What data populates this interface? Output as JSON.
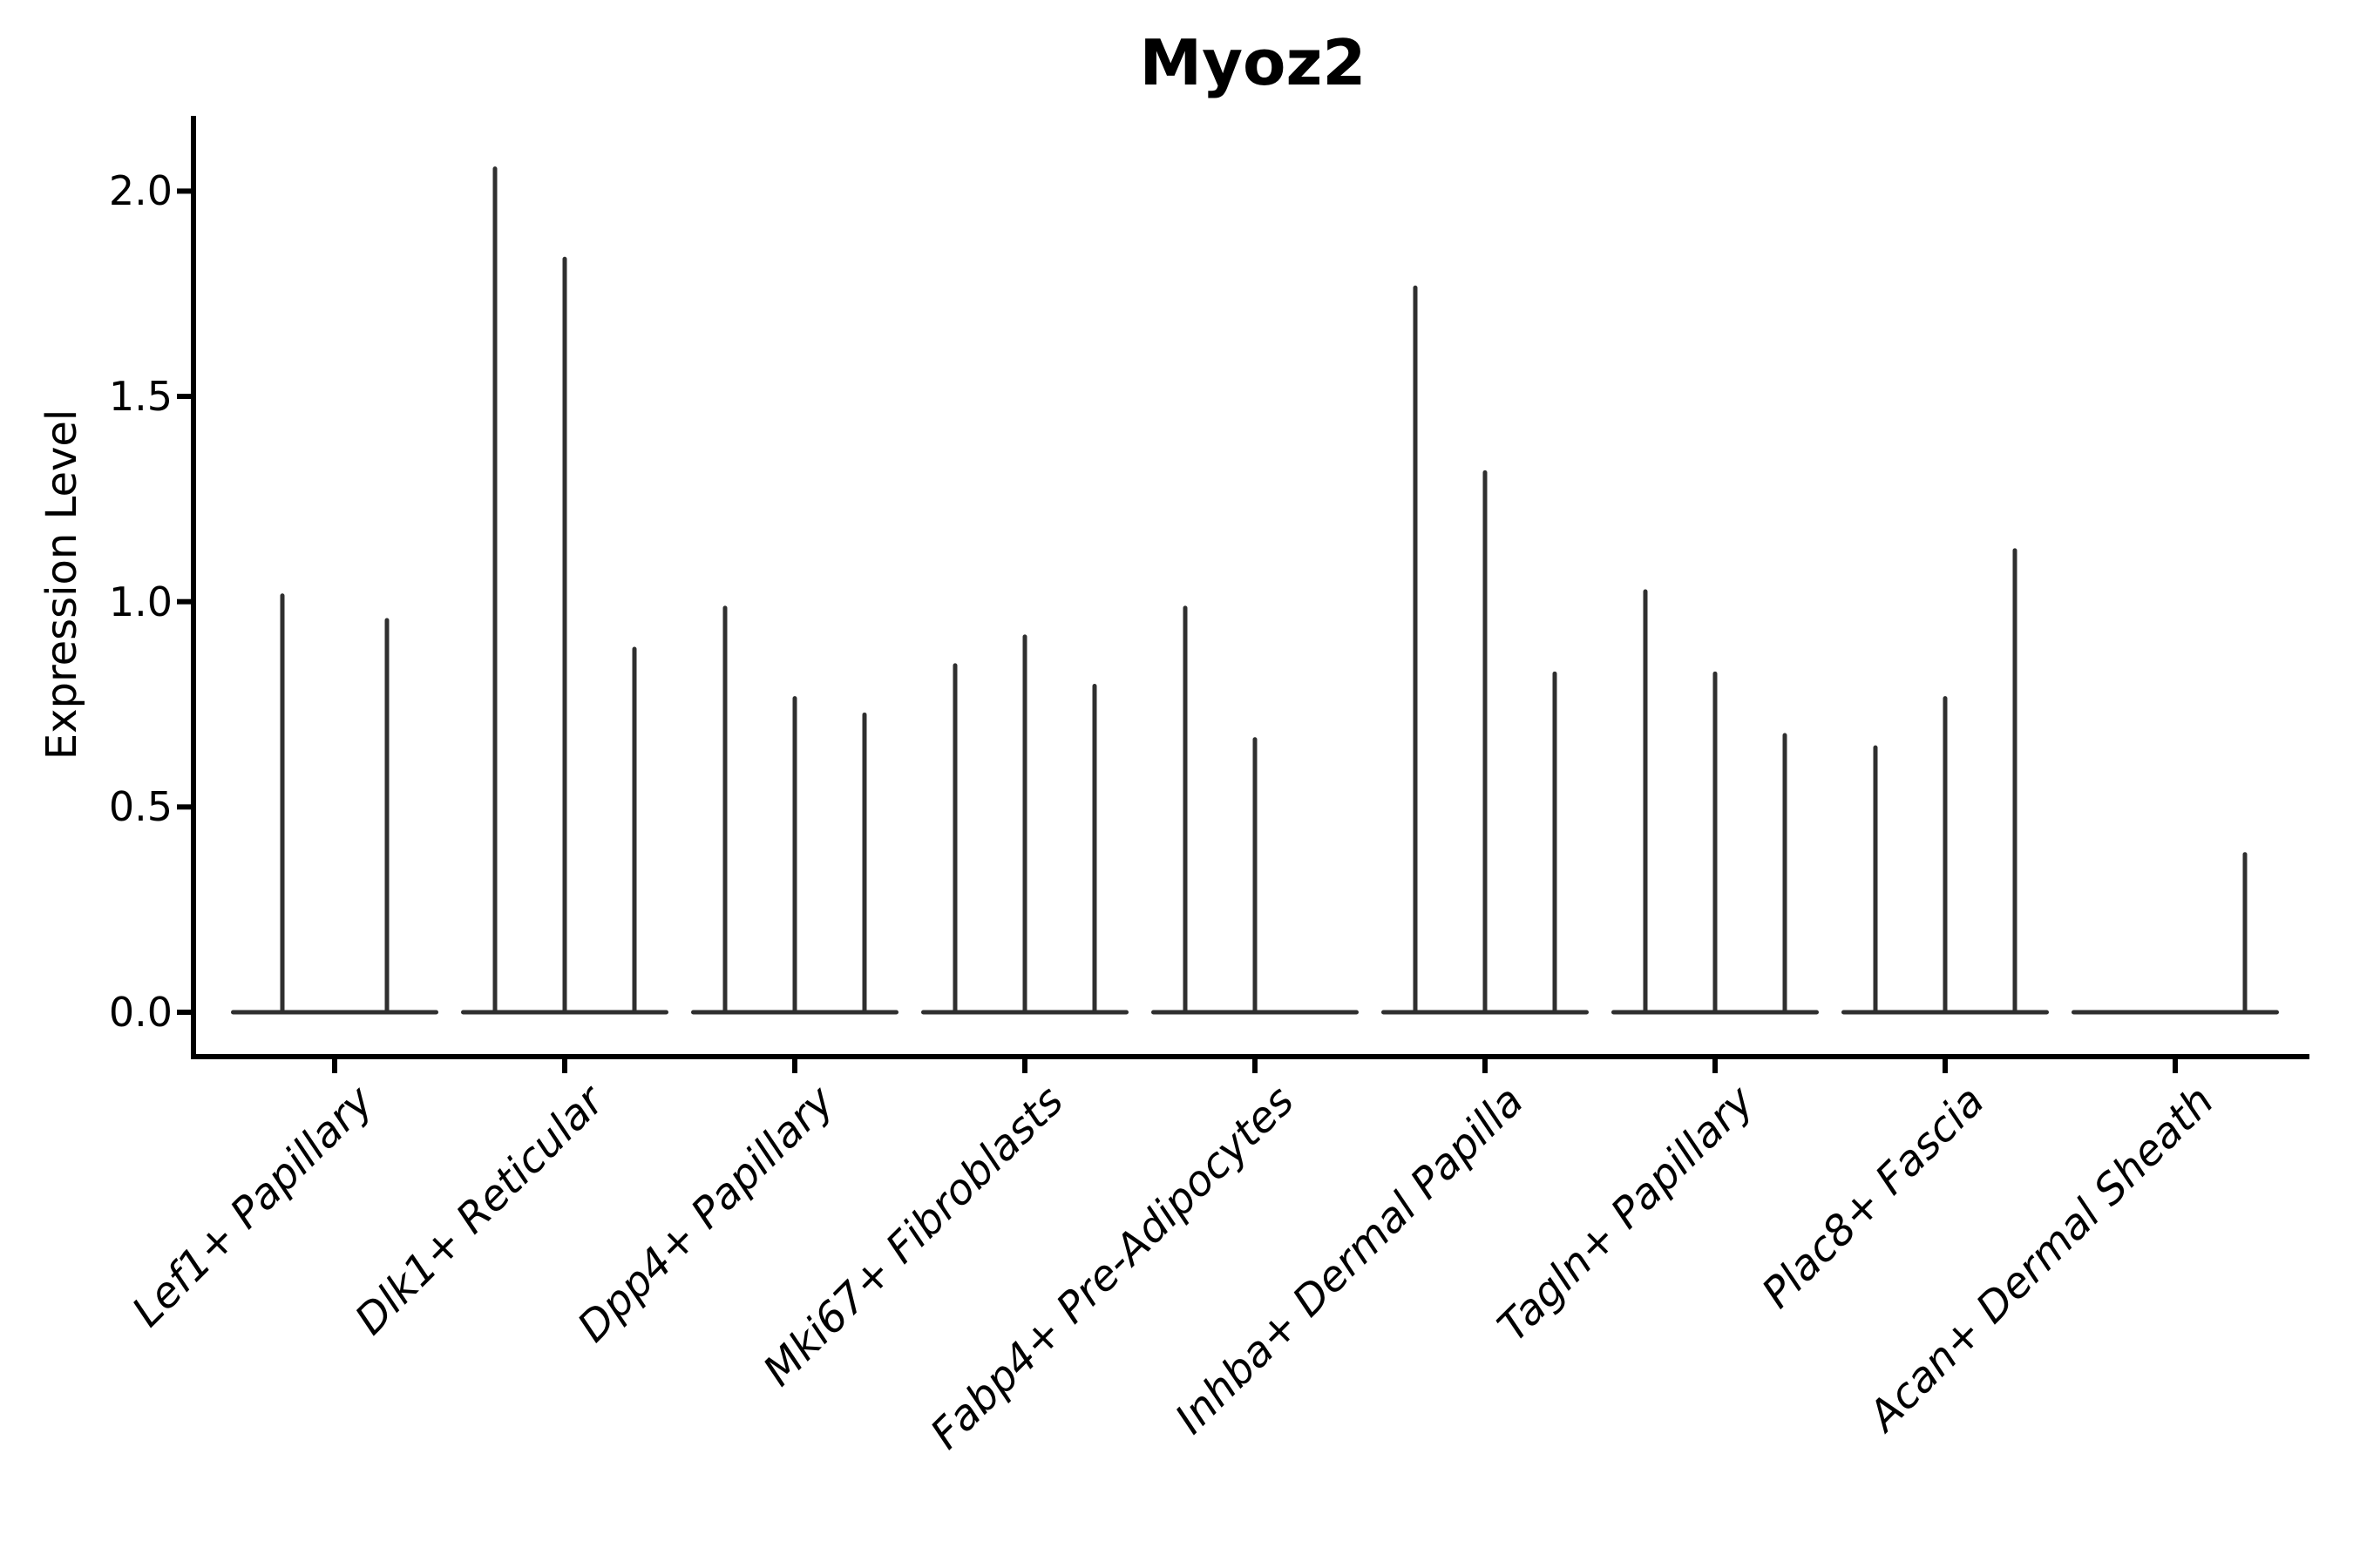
{
  "figure": {
    "background": "#ffffff"
  },
  "chart_data": {
    "type": "violin",
    "title": "Myoz2",
    "ylabel": "Expression Level",
    "xlabel": "",
    "grid": false,
    "legend": false,
    "ylim": [
      -0.1,
      2.18
    ],
    "ytick_values": [
      0.0,
      0.5,
      1.0,
      1.5,
      2.0
    ],
    "ytick_labels": [
      "0.0",
      "0.5",
      "1.0",
      "1.5",
      "2.0"
    ],
    "categories": [
      "Lef1+ Papillary",
      "Dlk1+ Reticular",
      "Dpp4+ Papillary",
      "Mki67+ Fibroblasts",
      "Fabp4+ Pre-Adipocytes",
      "Inhba+ Dermal Papilla",
      "Tagln+ Papillary",
      "Plac8+ Fascia",
      "Acan+ Dermal Sheath"
    ],
    "violin_peaks_per_category": [
      [
        1.02,
        0.96
      ],
      [
        2.06,
        1.84,
        0.89
      ],
      [
        0.99,
        0.77,
        0.73
      ],
      [
        0.85,
        0.92,
        0.8
      ],
      [
        0.99,
        0.67,
        0.0
      ],
      [
        1.77,
        1.32,
        0.83
      ],
      [
        1.03,
        0.83,
        0.68
      ],
      [
        0.65,
        0.77,
        1.13
      ],
      [
        0.0,
        0.0,
        0.39
      ]
    ],
    "colors": {
      "violin": "#2f2f2f",
      "axis": "#000000",
      "text": "#000000",
      "background": "#ffffff"
    }
  }
}
